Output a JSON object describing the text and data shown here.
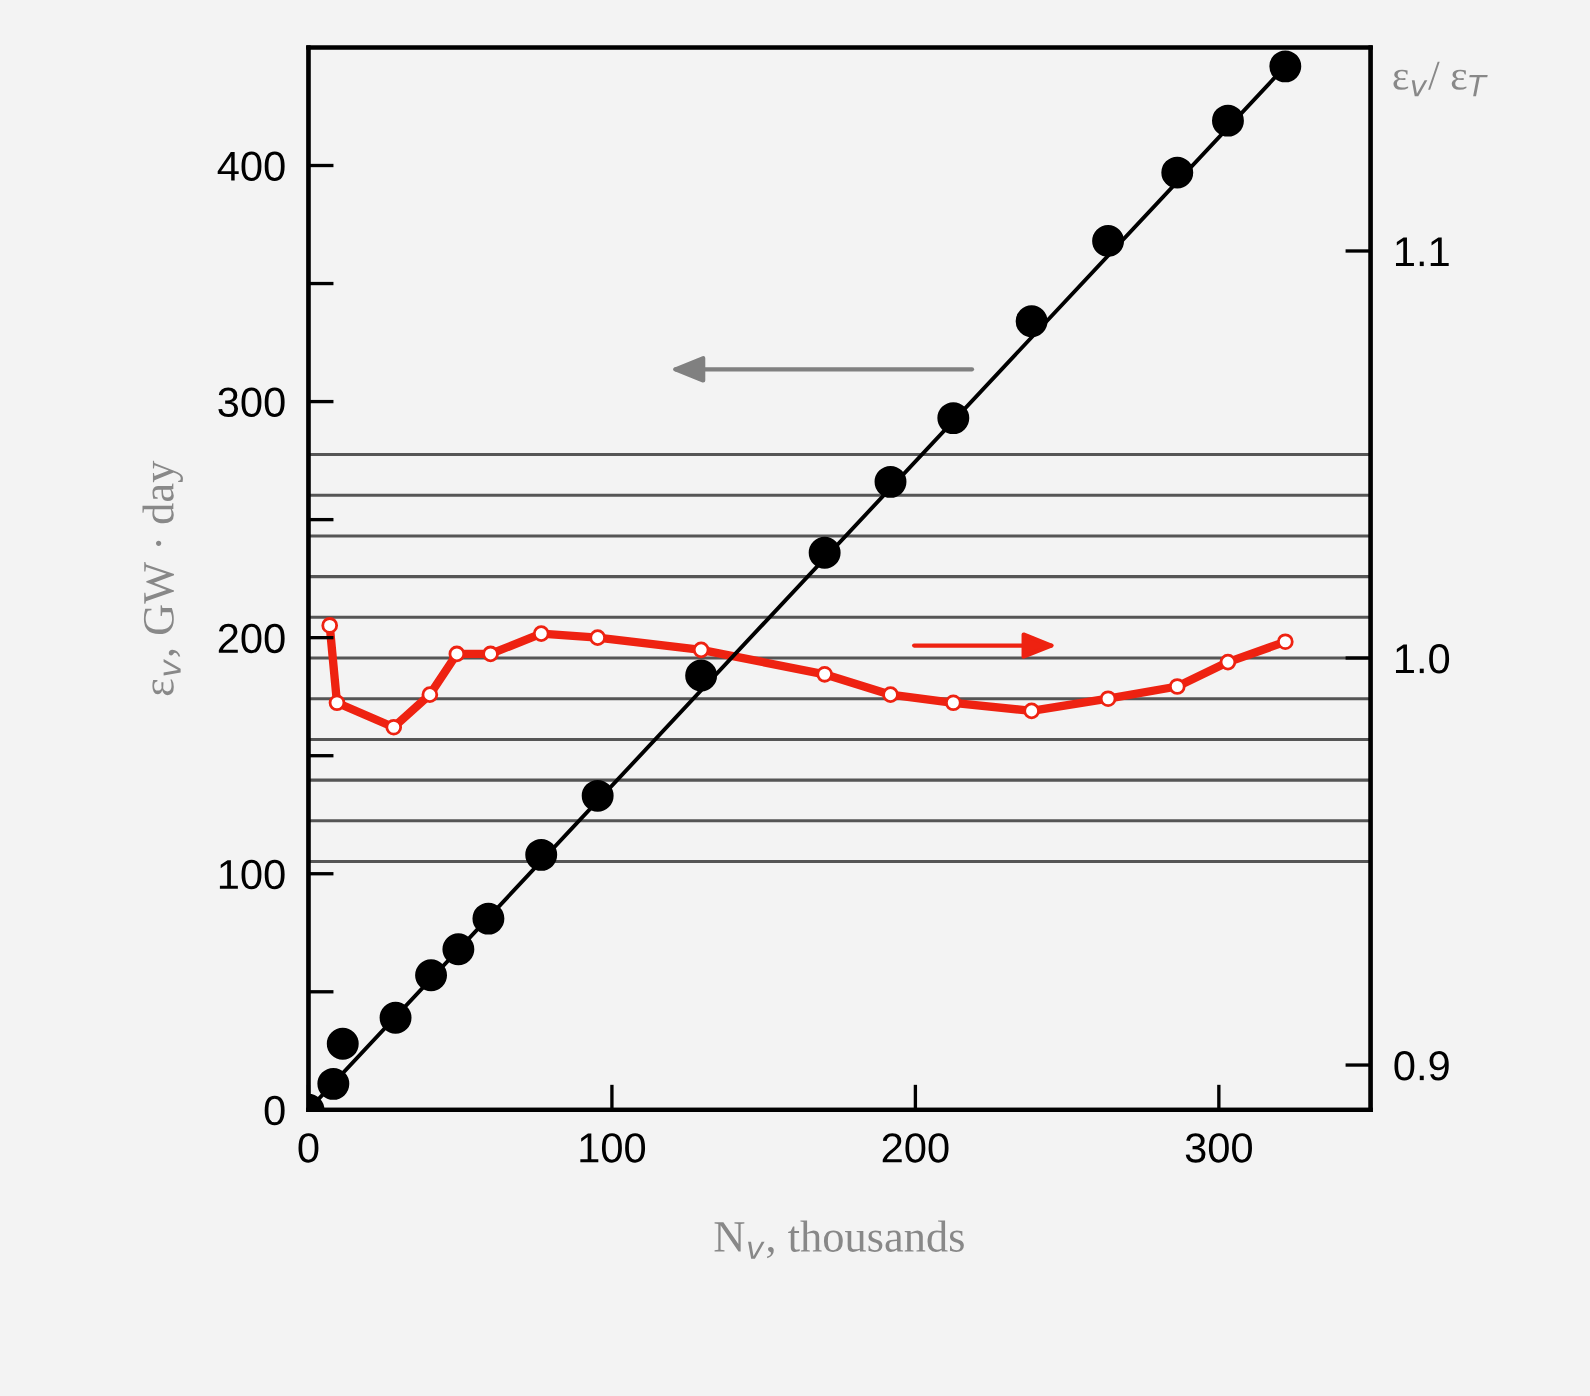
{
  "chart_data": {
    "type": "scatter",
    "xlabel": "N$_{v}$, thousands",
    "ylabel": "ε$_{v}$, GW · day",
    "y2label": "ε$_{v}$/ ε$_{T}$",
    "xlim": [
      0,
      350
    ],
    "xticks": [
      0,
      100,
      200,
      300
    ],
    "ylim": [
      0,
      450
    ],
    "yticks": [
      0,
      {
        "value": 50,
        "label": null
      },
      100,
      {
        "value": 150,
        "label": null
      },
      200,
      {
        "value": 250,
        "label": null
      },
      300,
      {
        "value": 350,
        "label": null
      },
      400
    ],
    "y2lim": [
      0.889,
      1.15
    ],
    "y2ticks": [
      0.9,
      {
        "value": 1.0,
        "label": "1.0"
      },
      1.1
    ],
    "grid": false,
    "legend": false,
    "series": [
      {
        "color": "#000000",
        "marker": "circle",
        "x": [
          0,
          8.2,
          11.3,
          28.7,
          40.4,
          49.4,
          59.3,
          76.7,
          95.3,
          129.4,
          170.1,
          191.8,
          212.5,
          238.3,
          263.5,
          286.3,
          303,
          321.9
        ],
        "values": [
          0,
          11,
          28,
          39,
          57,
          68,
          81,
          108,
          133,
          184,
          236,
          266,
          293,
          334,
          368,
          397,
          419,
          442
        ]
      },
      {
        "type": "line",
        "color": "#000000",
        "marker": "none",
        "line_style": "solid",
        "x": [
          0,
          321.9
        ],
        "values": [
          0,
          442
        ]
      },
      {
        "type": "line",
        "axis": "y2",
        "color": "#ee2211",
        "marker": "circle",
        "line_style": "solid",
        "x": [
          7.0,
          9.4,
          28.1,
          40.0,
          48.9,
          60.0,
          76.7,
          95.3,
          129.4,
          170.1,
          191.8,
          212.5,
          238.3,
          263.5,
          286.3,
          303,
          321.9
        ],
        "values": [
          1.008,
          0.989,
          0.983,
          0.991,
          1.001,
          1.001,
          1.006,
          1.005,
          1.002,
          0.996,
          0.991,
          0.989,
          0.987,
          0.99,
          0.993,
          0.999,
          1.004
        ]
      }
    ],
    "ref_lines": [
      {
        "axis": "y2",
        "value": 0.95,
        "color": "#555555"
      },
      {
        "axis": "y2",
        "value": 0.96,
        "color": "#555555"
      },
      {
        "axis": "y2",
        "value": 0.97,
        "color": "#555555"
      },
      {
        "axis": "y2",
        "value": 0.98,
        "color": "#555555"
      },
      {
        "axis": "y2",
        "value": 0.99,
        "color": "#555555"
      },
      {
        "axis": "y2",
        "value": 1.0,
        "color": "#555555"
      },
      {
        "axis": "y2",
        "value": 1.01,
        "color": "#555555"
      },
      {
        "axis": "y2",
        "value": 1.02,
        "color": "#555555"
      },
      {
        "axis": "y2",
        "value": 1.03,
        "color": "#555555"
      },
      {
        "axis": "y2",
        "value": 1.04,
        "color": "#555555"
      },
      {
        "axis": "y2",
        "value": 1.05,
        "color": "#555555"
      }
    ]
  }
}
